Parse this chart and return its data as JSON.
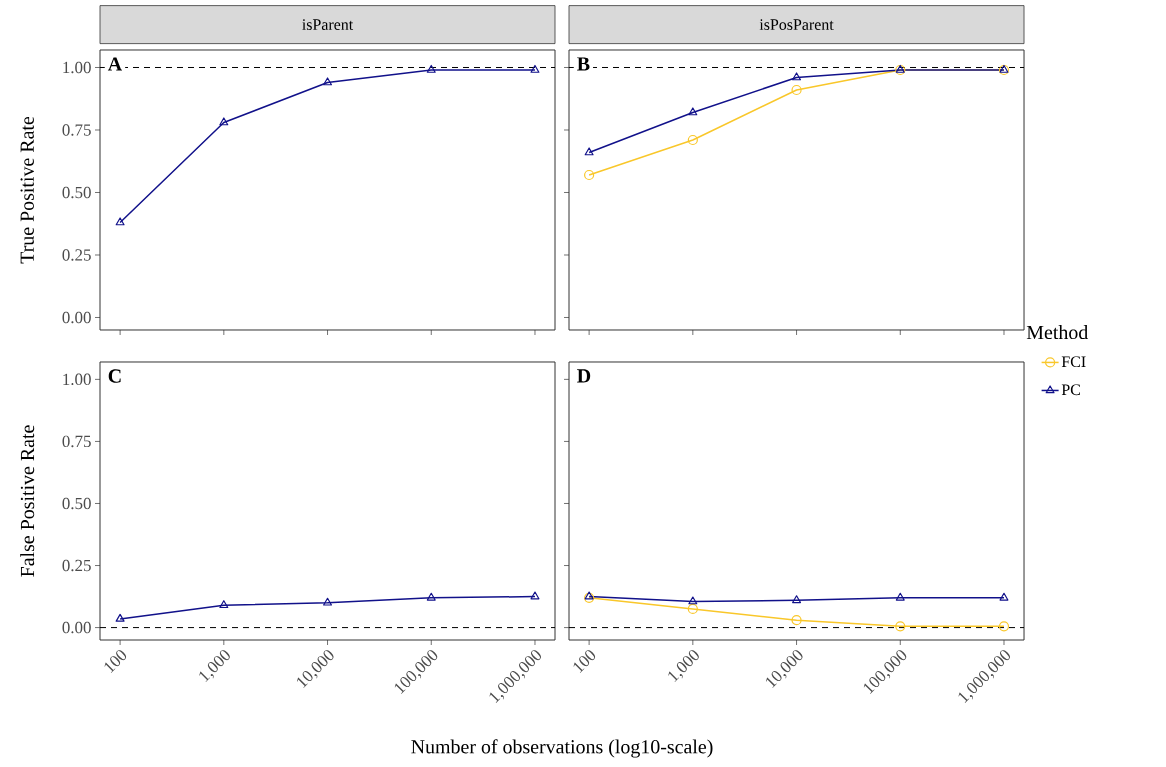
{
  "chart_data": [
    {
      "type": "line",
      "title": "isParent",
      "ylabel": "True Positive Rate",
      "log": "x",
      "x": [
        100,
        1000,
        10000,
        100000,
        1000000
      ],
      "xlim": [
        64,
        1560000
      ],
      "xticks": [
        100,
        1000,
        10000,
        100000,
        1000000
      ],
      "ylim": [
        -0.05,
        1.07
      ],
      "yticks": [
        {
          "value": 0,
          "label": "0.00"
        },
        {
          "value": 0.25,
          "label": "0.25"
        },
        {
          "value": 0.5,
          "label": "0.50"
        },
        {
          "value": 0.75,
          "label": "0.75"
        },
        {
          "value": 1,
          "label": "1.00"
        }
      ],
      "tick_labels": "y",
      "series": [
        {
          "color": "#11118a",
          "marker": "triangle",
          "values": [
            0.38,
            0.78,
            0.94,
            0.99,
            0.99
          ]
        }
      ],
      "ref_lines": [
        {
          "axis": "y",
          "value": 1,
          "line_style": "dashed",
          "color": "#000000"
        }
      ],
      "annotations": [
        "A"
      ]
    },
    {
      "type": "line",
      "title": "isPosParent",
      "log": "x",
      "x": [
        100,
        1000,
        10000,
        100000,
        1000000
      ],
      "xlim": [
        64,
        1560000
      ],
      "xticks": [
        100,
        1000,
        10000,
        100000,
        1000000
      ],
      "ylim": [
        -0.05,
        1.07
      ],
      "yticks": [
        0,
        0.25,
        0.5,
        0.75,
        1
      ],
      "tick_labels": false,
      "legend": "right",
      "legend_title": "Method",
      "series": [
        {
          "name": "FCI",
          "color": "#f9c72a",
          "marker": "circle",
          "values": [
            0.57,
            0.71,
            0.91,
            0.99,
            0.99
          ]
        },
        {
          "name": "PC",
          "color": "#11118a",
          "marker": "triangle",
          "values": [
            0.66,
            0.82,
            0.96,
            0.99,
            0.99
          ]
        }
      ],
      "ref_lines": [
        {
          "axis": "y",
          "value": 1,
          "line_style": "dashed",
          "color": "#000000"
        }
      ],
      "annotations": [
        "B"
      ]
    },
    {
      "type": "line",
      "ylabel": "False Positive Rate",
      "xlabel": "Number of observations (log10-scale)",
      "log": "x",
      "x": [
        100,
        1000,
        10000,
        100000,
        1000000
      ],
      "xlim": [
        64,
        1560000
      ],
      "xticks": [
        100,
        {
          "value": 1000,
          "label": "1,000"
        },
        {
          "value": 10000,
          "label": "10,000"
        },
        {
          "value": 100000,
          "label": "100,000"
        },
        {
          "value": 1000000,
          "label": "1,000,000"
        }
      ],
      "ylim": [
        -0.05,
        1.07
      ],
      "yticks": [
        {
          "value": 0,
          "label": "0.00"
        },
        {
          "value": 0.25,
          "label": "0.25"
        },
        {
          "value": 0.5,
          "label": "0.50"
        },
        {
          "value": 0.75,
          "label": "0.75"
        },
        {
          "value": 1,
          "label": "1.00"
        }
      ],
      "series": [
        {
          "color": "#11118a",
          "marker": "triangle",
          "values": [
            0.035,
            0.09,
            0.1,
            0.12,
            0.125
          ]
        }
      ],
      "ref_lines": [
        {
          "axis": "y",
          "value": 0,
          "line_style": "dashed",
          "color": "#000000"
        }
      ],
      "annotations": [
        "C"
      ]
    },
    {
      "type": "line",
      "log": "x",
      "x": [
        100,
        1000,
        10000,
        100000,
        1000000
      ],
      "xlim": [
        64,
        1560000
      ],
      "xticks": [
        100,
        {
          "value": 1000,
          "label": "1,000"
        },
        {
          "value": 10000,
          "label": "10,000"
        },
        {
          "value": 100000,
          "label": "100,000"
        },
        {
          "value": 1000000,
          "label": "1,000,000"
        }
      ],
      "ylim": [
        -0.05,
        1.07
      ],
      "yticks": [
        0,
        0.25,
        0.5,
        0.75,
        1
      ],
      "tick_labels": "x",
      "series": [
        {
          "color": "#f9c72a",
          "marker": "circle",
          "values": [
            0.12,
            0.075,
            0.03,
            0.005,
            0.005
          ]
        },
        {
          "color": "#11118a",
          "marker": "triangle",
          "values": [
            0.125,
            0.105,
            0.11,
            0.12,
            0.12
          ]
        }
      ],
      "ref_lines": [
        {
          "axis": "y",
          "value": 0,
          "line_style": "dashed",
          "color": "#000000"
        }
      ],
      "annotations": [
        "D"
      ]
    }
  ]
}
